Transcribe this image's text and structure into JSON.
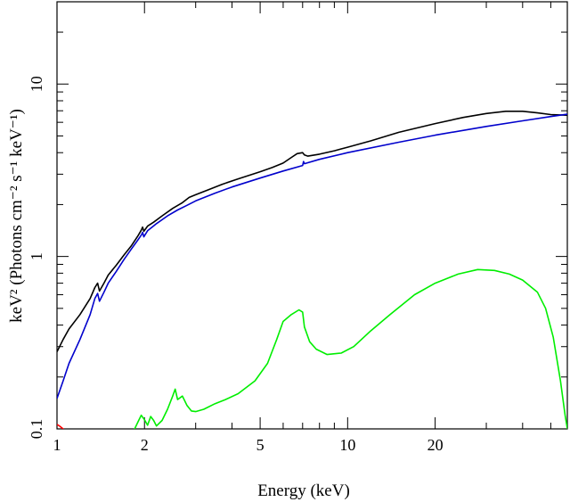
{
  "chart_data": {
    "type": "line",
    "xlabel": "Energy (keV)",
    "ylabel": "keV² (Photons cm⁻² s⁻¹ keV⁻¹)",
    "x_scale": "log",
    "y_scale": "log",
    "xlim": [
      1,
      57
    ],
    "ylim": [
      0.1,
      30
    ],
    "x_ticks": [
      {
        "value": 1,
        "label": "1"
      },
      {
        "value": 2,
        "label": "2"
      },
      {
        "value": 5,
        "label": "5"
      },
      {
        "value": 10,
        "label": "10"
      },
      {
        "value": 20,
        "label": "20"
      }
    ],
    "y_ticks": [
      {
        "value": 0.1,
        "label": "0.1"
      },
      {
        "value": 1,
        "label": "1"
      },
      {
        "value": 10,
        "label": "10"
      }
    ],
    "grid": false,
    "legend": "none",
    "series": [
      {
        "color": "#000000",
        "points": [
          [
            1.0,
            0.28
          ],
          [
            1.05,
            0.33
          ],
          [
            1.1,
            0.38
          ],
          [
            1.2,
            0.46
          ],
          [
            1.3,
            0.57
          ],
          [
            1.35,
            0.66
          ],
          [
            1.38,
            0.7
          ],
          [
            1.4,
            0.63
          ],
          [
            1.45,
            0.7
          ],
          [
            1.5,
            0.78
          ],
          [
            1.6,
            0.89
          ],
          [
            1.7,
            1.02
          ],
          [
            1.8,
            1.15
          ],
          [
            1.9,
            1.32
          ],
          [
            1.95,
            1.42
          ],
          [
            1.97,
            1.48
          ],
          [
            1.99,
            1.4
          ],
          [
            2.05,
            1.5
          ],
          [
            2.15,
            1.58
          ],
          [
            2.3,
            1.72
          ],
          [
            2.5,
            1.9
          ],
          [
            2.7,
            2.05
          ],
          [
            2.85,
            2.2
          ],
          [
            3.0,
            2.28
          ],
          [
            3.3,
            2.43
          ],
          [
            3.7,
            2.62
          ],
          [
            4.2,
            2.82
          ],
          [
            5.0,
            3.1
          ],
          [
            5.5,
            3.28
          ],
          [
            6.0,
            3.48
          ],
          [
            6.4,
            3.75
          ],
          [
            6.7,
            3.95
          ],
          [
            7.0,
            4.0
          ],
          [
            7.1,
            3.88
          ],
          [
            7.3,
            3.82
          ],
          [
            8.0,
            3.92
          ],
          [
            9.0,
            4.1
          ],
          [
            10.0,
            4.3
          ],
          [
            12.0,
            4.68
          ],
          [
            15.0,
            5.25
          ],
          [
            20.0,
            5.9
          ],
          [
            25.0,
            6.4
          ],
          [
            30.0,
            6.75
          ],
          [
            35.0,
            6.95
          ],
          [
            40.0,
            6.95
          ],
          [
            45.0,
            6.8
          ],
          [
            50.0,
            6.65
          ],
          [
            57.0,
            6.6
          ]
        ]
      },
      {
        "color": "#0000cc",
        "points": [
          [
            1.0,
            0.15
          ],
          [
            1.05,
            0.19
          ],
          [
            1.1,
            0.24
          ],
          [
            1.2,
            0.33
          ],
          [
            1.3,
            0.46
          ],
          [
            1.35,
            0.57
          ],
          [
            1.38,
            0.61
          ],
          [
            1.4,
            0.55
          ],
          [
            1.45,
            0.62
          ],
          [
            1.5,
            0.7
          ],
          [
            1.6,
            0.82
          ],
          [
            1.7,
            0.96
          ],
          [
            1.8,
            1.1
          ],
          [
            1.9,
            1.25
          ],
          [
            1.95,
            1.33
          ],
          [
            1.97,
            1.38
          ],
          [
            1.99,
            1.3
          ],
          [
            2.05,
            1.41
          ],
          [
            2.2,
            1.55
          ],
          [
            2.4,
            1.72
          ],
          [
            2.6,
            1.86
          ],
          [
            2.8,
            1.98
          ],
          [
            3.0,
            2.1
          ],
          [
            3.5,
            2.33
          ],
          [
            4.0,
            2.53
          ],
          [
            5.0,
            2.85
          ],
          [
            6.0,
            3.13
          ],
          [
            7.0,
            3.37
          ],
          [
            7.05,
            3.55
          ],
          [
            7.1,
            3.45
          ],
          [
            8.0,
            3.66
          ],
          [
            10.0,
            4.0
          ],
          [
            15.0,
            4.6
          ],
          [
            20.0,
            5.05
          ],
          [
            30.0,
            5.68
          ],
          [
            40.0,
            6.12
          ],
          [
            50.0,
            6.48
          ],
          [
            57.0,
            6.68
          ]
        ]
      },
      {
        "color": "#00ee00",
        "points": [
          [
            1.8,
            0.094
          ],
          [
            1.85,
            0.1
          ],
          [
            1.9,
            0.11
          ],
          [
            1.95,
            0.12
          ],
          [
            2.0,
            0.113
          ],
          [
            2.05,
            0.105
          ],
          [
            2.1,
            0.118
          ],
          [
            2.15,
            0.112
          ],
          [
            2.2,
            0.104
          ],
          [
            2.3,
            0.112
          ],
          [
            2.4,
            0.13
          ],
          [
            2.5,
            0.155
          ],
          [
            2.55,
            0.17
          ],
          [
            2.6,
            0.148
          ],
          [
            2.7,
            0.155
          ],
          [
            2.8,
            0.137
          ],
          [
            2.9,
            0.127
          ],
          [
            3.0,
            0.126
          ],
          [
            3.2,
            0.13
          ],
          [
            3.5,
            0.14
          ],
          [
            3.8,
            0.148
          ],
          [
            4.2,
            0.16
          ],
          [
            4.8,
            0.19
          ],
          [
            5.3,
            0.24
          ],
          [
            5.7,
            0.33
          ],
          [
            6.0,
            0.42
          ],
          [
            6.4,
            0.46
          ],
          [
            6.8,
            0.49
          ],
          [
            7.0,
            0.475
          ],
          [
            7.1,
            0.39
          ],
          [
            7.4,
            0.32
          ],
          [
            7.8,
            0.29
          ],
          [
            8.5,
            0.27
          ],
          [
            9.5,
            0.275
          ],
          [
            10.5,
            0.3
          ],
          [
            12.0,
            0.37
          ],
          [
            14.0,
            0.46
          ],
          [
            17.0,
            0.6
          ],
          [
            20.0,
            0.7
          ],
          [
            24.0,
            0.79
          ],
          [
            28.0,
            0.84
          ],
          [
            32.0,
            0.83
          ],
          [
            36.0,
            0.79
          ],
          [
            40.0,
            0.73
          ],
          [
            45.0,
            0.62
          ],
          [
            48.0,
            0.5
          ],
          [
            51.0,
            0.34
          ],
          [
            54.0,
            0.19
          ],
          [
            56.0,
            0.12
          ],
          [
            57.5,
            0.092
          ]
        ]
      },
      {
        "color": "#ff0000",
        "points": [
          [
            1.0,
            0.106
          ],
          [
            1.02,
            0.104
          ],
          [
            1.05,
            0.1
          ],
          [
            1.07,
            0.094
          ]
        ]
      }
    ]
  }
}
